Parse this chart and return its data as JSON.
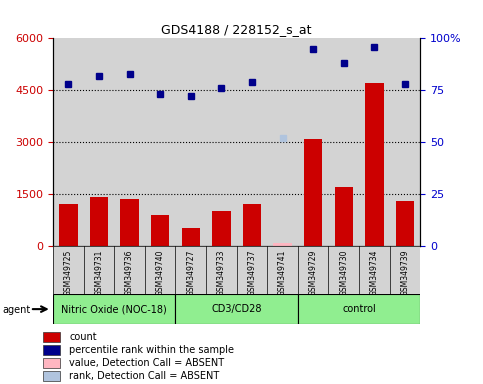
{
  "title": "GDS4188 / 228152_s_at",
  "samples": [
    "GSM349725",
    "GSM349731",
    "GSM349736",
    "GSM349740",
    "GSM349727",
    "GSM349733",
    "GSM349737",
    "GSM349741",
    "GSM349729",
    "GSM349730",
    "GSM349734",
    "GSM349739"
  ],
  "groups": [
    {
      "name": "Nitric Oxide (NOC-18)",
      "start": 0,
      "end": 4
    },
    {
      "name": "CD3/CD28",
      "start": 4,
      "end": 8
    },
    {
      "name": "control",
      "start": 8,
      "end": 12
    }
  ],
  "bar_values": [
    1200,
    1400,
    1350,
    900,
    500,
    1000,
    1200,
    80,
    3100,
    1700,
    4700,
    1300
  ],
  "bar_absent": [
    false,
    false,
    false,
    false,
    false,
    false,
    false,
    true,
    false,
    false,
    false,
    false
  ],
  "dot_values": [
    78,
    82,
    83,
    73,
    72,
    76,
    79,
    52,
    95,
    88,
    96,
    78
  ],
  "dot_absent": [
    false,
    false,
    false,
    false,
    false,
    false,
    false,
    true,
    false,
    false,
    false,
    false
  ],
  "ylim_left": [
    0,
    6000
  ],
  "ylim_right": [
    0,
    100
  ],
  "yticks_left": [
    0,
    1500,
    3000,
    4500,
    6000
  ],
  "yticks_right": [
    0,
    25,
    50,
    75,
    100
  ],
  "ytick_right_labels": [
    "0",
    "25",
    "50",
    "75",
    "100%"
  ],
  "bar_color": "#CC0000",
  "bar_absent_color": "#FFB6C1",
  "dot_color": "#00008B",
  "dot_absent_color": "#B0C4DE",
  "bg_color": "#D3D3D3",
  "group_color": "#90EE90",
  "legend_items": [
    {
      "label": "count",
      "color": "#CC0000"
    },
    {
      "label": "percentile rank within the sample",
      "color": "#00008B"
    },
    {
      "label": "value, Detection Call = ABSENT",
      "color": "#FFB6C1"
    },
    {
      "label": "rank, Detection Call = ABSENT",
      "color": "#B0C4DE"
    }
  ]
}
